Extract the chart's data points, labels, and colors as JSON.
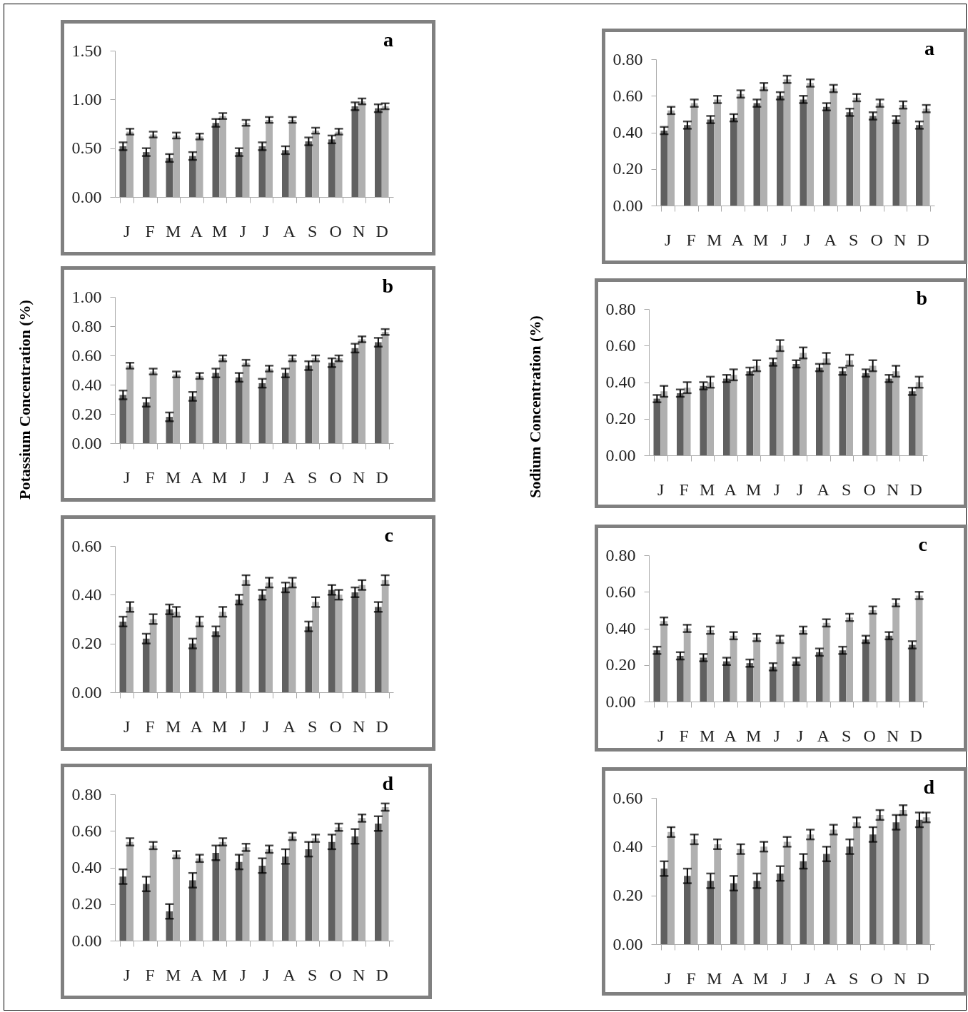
{
  "chart_data": [
    {
      "type": "bar",
      "title": "a",
      "categories": [
        "J",
        "F",
        "M",
        "A",
        "M",
        "J",
        "J",
        "A",
        "S",
        "O",
        "N",
        "D"
      ],
      "ylim": [
        0,
        1.5
      ],
      "yticks": [
        {
          "value": 0,
          "label": "0.00"
        },
        {
          "value": 0.5,
          "label": "0.50"
        },
        {
          "value": 1,
          "label": "1.00"
        },
        {
          "value": 1.5,
          "label": "1.50"
        }
      ],
      "series": [
        {
          "color": "#606060",
          "values": [
            0.52,
            0.46,
            0.4,
            0.42,
            0.76,
            0.46,
            0.52,
            0.48,
            0.57,
            0.59,
            0.93,
            0.91
          ],
          "errors": [
            0.04,
            0.04,
            0.04,
            0.04,
            0.04,
            0.04,
            0.04,
            0.04,
            0.04,
            0.04,
            0.04,
            0.04
          ]
        },
        {
          "color": "#b0b0b0",
          "values": [
            0.67,
            0.64,
            0.63,
            0.62,
            0.83,
            0.76,
            0.79,
            0.79,
            0.68,
            0.67,
            0.98,
            0.93
          ],
          "errors": [
            0.03,
            0.03,
            0.03,
            0.03,
            0.03,
            0.03,
            0.03,
            0.03,
            0.03,
            0.03,
            0.03,
            0.03
          ]
        }
      ]
    },
    {
      "type": "bar",
      "title": "b",
      "ylabel": "Potassium Concentration (%)",
      "categories": [
        "J",
        "F",
        "M",
        "A",
        "M",
        "J",
        "J",
        "A",
        "S",
        "O",
        "N",
        "D"
      ],
      "ylim": [
        0,
        1
      ],
      "yticks": [
        {
          "value": 0,
          "label": "0.00"
        },
        {
          "value": 0.2,
          "label": "0.20"
        },
        {
          "value": 0.4,
          "label": "0.40"
        },
        {
          "value": 0.6,
          "label": "0.60"
        },
        {
          "value": 0.8,
          "label": "0.80"
        },
        {
          "value": 1,
          "label": "1.00"
        }
      ],
      "series": [
        {
          "color": "#606060",
          "values": [
            0.33,
            0.28,
            0.18,
            0.32,
            0.48,
            0.45,
            0.41,
            0.48,
            0.53,
            0.55,
            0.65,
            0.69
          ],
          "errors": [
            0.03,
            0.03,
            0.03,
            0.03,
            0.03,
            0.03,
            0.03,
            0.03,
            0.03,
            0.03,
            0.03,
            0.03
          ]
        },
        {
          "color": "#b0b0b0",
          "values": [
            0.53,
            0.49,
            0.47,
            0.46,
            0.58,
            0.55,
            0.51,
            0.58,
            0.58,
            0.58,
            0.71,
            0.76
          ],
          "errors": [
            0.02,
            0.02,
            0.02,
            0.02,
            0.02,
            0.02,
            0.02,
            0.02,
            0.02,
            0.02,
            0.02,
            0.02
          ]
        }
      ]
    },
    {
      "type": "bar",
      "title": "c",
      "categories": [
        "J",
        "F",
        "M",
        "A",
        "M",
        "J",
        "J",
        "A",
        "S",
        "O",
        "N",
        "D"
      ],
      "ylim": [
        0,
        0.6
      ],
      "yticks": [
        {
          "value": 0,
          "label": "0.00"
        },
        {
          "value": 0.2,
          "label": "0.20"
        },
        {
          "value": 0.4,
          "label": "0.40"
        },
        {
          "value": 0.6,
          "label": "0.60"
        }
      ],
      "series": [
        {
          "color": "#606060",
          "values": [
            0.29,
            0.22,
            0.34,
            0.2,
            0.25,
            0.38,
            0.4,
            0.43,
            0.27,
            0.42,
            0.41,
            0.35
          ],
          "errors": [
            0.02,
            0.02,
            0.02,
            0.02,
            0.02,
            0.02,
            0.02,
            0.02,
            0.02,
            0.02,
            0.02,
            0.02
          ]
        },
        {
          "color": "#b0b0b0",
          "values": [
            0.35,
            0.3,
            0.33,
            0.29,
            0.33,
            0.46,
            0.45,
            0.45,
            0.37,
            0.4,
            0.44,
            0.46
          ],
          "errors": [
            0.02,
            0.02,
            0.02,
            0.02,
            0.02,
            0.02,
            0.02,
            0.02,
            0.02,
            0.02,
            0.02,
            0.02
          ]
        }
      ]
    },
    {
      "type": "bar",
      "title": "d",
      "categories": [
        "J",
        "F",
        "M",
        "A",
        "M",
        "J",
        "J",
        "A",
        "S",
        "O",
        "N",
        "D"
      ],
      "ylim": [
        0,
        0.8
      ],
      "yticks": [
        {
          "value": 0,
          "label": "0.00"
        },
        {
          "value": 0.2,
          "label": "0.20"
        },
        {
          "value": 0.4,
          "label": "0.40"
        },
        {
          "value": 0.6,
          "label": "0.60"
        },
        {
          "value": 0.8,
          "label": "0.80"
        }
      ],
      "series": [
        {
          "color": "#606060",
          "values": [
            0.35,
            0.31,
            0.16,
            0.33,
            0.48,
            0.43,
            0.41,
            0.46,
            0.5,
            0.54,
            0.57,
            0.64
          ],
          "errors": [
            0.04,
            0.04,
            0.04,
            0.04,
            0.04,
            0.04,
            0.04,
            0.04,
            0.04,
            0.04,
            0.04,
            0.04
          ]
        },
        {
          "color": "#b0b0b0",
          "values": [
            0.54,
            0.52,
            0.47,
            0.45,
            0.54,
            0.51,
            0.5,
            0.57,
            0.56,
            0.62,
            0.67,
            0.73
          ],
          "errors": [
            0.02,
            0.02,
            0.02,
            0.02,
            0.02,
            0.02,
            0.02,
            0.02,
            0.02,
            0.02,
            0.02,
            0.02
          ]
        }
      ]
    },
    {
      "type": "bar",
      "title": "a",
      "categories": [
        "J",
        "F",
        "M",
        "A",
        "M",
        "J",
        "J",
        "A",
        "S",
        "O",
        "N",
        "D"
      ],
      "ylim": [
        0,
        0.8
      ],
      "yticks": [
        {
          "value": 0,
          "label": "0.00"
        },
        {
          "value": 0.2,
          "label": "0.20"
        },
        {
          "value": 0.4,
          "label": "0.40"
        },
        {
          "value": 0.6,
          "label": "0.60"
        },
        {
          "value": 0.8,
          "label": "0.80"
        }
      ],
      "series": [
        {
          "color": "#606060",
          "values": [
            0.41,
            0.44,
            0.47,
            0.48,
            0.56,
            0.6,
            0.58,
            0.54,
            0.51,
            0.49,
            0.47,
            0.44
          ],
          "errors": [
            0.02,
            0.02,
            0.02,
            0.02,
            0.02,
            0.02,
            0.02,
            0.02,
            0.02,
            0.02,
            0.02,
            0.02
          ]
        },
        {
          "color": "#b0b0b0",
          "values": [
            0.52,
            0.56,
            0.58,
            0.61,
            0.65,
            0.69,
            0.67,
            0.64,
            0.59,
            0.56,
            0.55,
            0.53
          ],
          "errors": [
            0.02,
            0.02,
            0.02,
            0.02,
            0.02,
            0.02,
            0.02,
            0.02,
            0.02,
            0.02,
            0.02,
            0.02
          ]
        }
      ]
    },
    {
      "type": "bar",
      "title": "b",
      "ylabel": "Sodium Concentration (%)",
      "categories": [
        "J",
        "F",
        "M",
        "A",
        "M",
        "J",
        "J",
        "A",
        "S",
        "O",
        "N",
        "D"
      ],
      "ylim": [
        0,
        0.8
      ],
      "yticks": [
        {
          "value": 0,
          "label": "0.00"
        },
        {
          "value": 0.2,
          "label": "0.20"
        },
        {
          "value": 0.4,
          "label": "0.40"
        },
        {
          "value": 0.6,
          "label": "0.60"
        },
        {
          "value": 0.8,
          "label": "0.80"
        }
      ],
      "series": [
        {
          "color": "#606060",
          "values": [
            0.31,
            0.34,
            0.38,
            0.42,
            0.46,
            0.51,
            0.5,
            0.48,
            0.46,
            0.45,
            0.42,
            0.35
          ],
          "errors": [
            0.02,
            0.02,
            0.02,
            0.02,
            0.02,
            0.02,
            0.02,
            0.02,
            0.02,
            0.02,
            0.02,
            0.02
          ]
        },
        {
          "color": "#b0b0b0",
          "values": [
            0.35,
            0.37,
            0.4,
            0.44,
            0.49,
            0.6,
            0.56,
            0.53,
            0.52,
            0.49,
            0.46,
            0.4
          ],
          "errors": [
            0.03,
            0.03,
            0.03,
            0.03,
            0.03,
            0.03,
            0.03,
            0.03,
            0.03,
            0.03,
            0.03,
            0.03
          ]
        }
      ]
    },
    {
      "type": "bar",
      "title": "c",
      "categories": [
        "J",
        "F",
        "M",
        "A",
        "M",
        "J",
        "J",
        "A",
        "S",
        "O",
        "N",
        "D"
      ],
      "ylim": [
        0,
        0.8
      ],
      "yticks": [
        {
          "value": 0,
          "label": "0.00"
        },
        {
          "value": 0.2,
          "label": "0.20"
        },
        {
          "value": 0.4,
          "label": "0.40"
        },
        {
          "value": 0.6,
          "label": "0.60"
        },
        {
          "value": 0.8,
          "label": "0.80"
        }
      ],
      "series": [
        {
          "color": "#606060",
          "values": [
            0.28,
            0.25,
            0.24,
            0.22,
            0.21,
            0.19,
            0.22,
            0.27,
            0.28,
            0.34,
            0.36,
            0.31
          ],
          "errors": [
            0.02,
            0.02,
            0.02,
            0.02,
            0.02,
            0.02,
            0.02,
            0.02,
            0.02,
            0.02,
            0.02,
            0.02
          ]
        },
        {
          "color": "#b0b0b0",
          "values": [
            0.44,
            0.4,
            0.39,
            0.36,
            0.35,
            0.34,
            0.39,
            0.43,
            0.46,
            0.5,
            0.54,
            0.58
          ],
          "errors": [
            0.02,
            0.02,
            0.02,
            0.02,
            0.02,
            0.02,
            0.02,
            0.02,
            0.02,
            0.02,
            0.02,
            0.02
          ]
        }
      ]
    },
    {
      "type": "bar",
      "title": "d",
      "categories": [
        "J",
        "F",
        "M",
        "A",
        "M",
        "J",
        "J",
        "A",
        "S",
        "O",
        "N",
        "D"
      ],
      "ylim": [
        0,
        0.6
      ],
      "yticks": [
        {
          "value": 0,
          "label": "0.00"
        },
        {
          "value": 0.2,
          "label": "0.20"
        },
        {
          "value": 0.4,
          "label": "0.40"
        },
        {
          "value": 0.6,
          "label": "0.60"
        }
      ],
      "series": [
        {
          "color": "#606060",
          "values": [
            0.31,
            0.28,
            0.26,
            0.25,
            0.26,
            0.29,
            0.34,
            0.37,
            0.4,
            0.45,
            0.5,
            0.51
          ],
          "errors": [
            0.03,
            0.03,
            0.03,
            0.03,
            0.03,
            0.03,
            0.03,
            0.03,
            0.03,
            0.03,
            0.03,
            0.03
          ]
        },
        {
          "color": "#b0b0b0",
          "values": [
            0.46,
            0.43,
            0.41,
            0.39,
            0.4,
            0.42,
            0.45,
            0.47,
            0.5,
            0.53,
            0.55,
            0.52
          ],
          "errors": [
            0.02,
            0.02,
            0.02,
            0.02,
            0.02,
            0.02,
            0.02,
            0.02,
            0.02,
            0.02,
            0.02,
            0.02
          ]
        }
      ]
    }
  ]
}
